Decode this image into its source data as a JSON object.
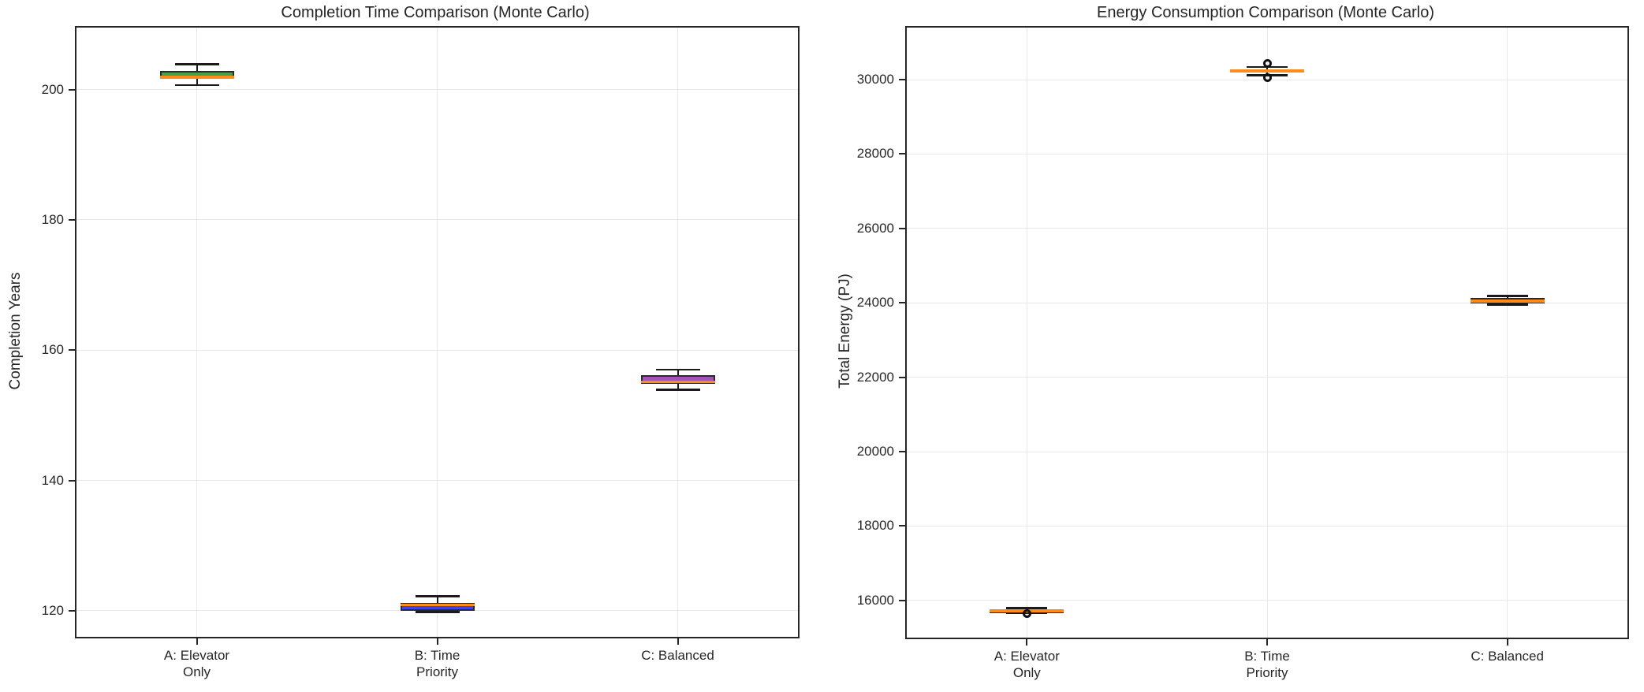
{
  "figure": {
    "background": "#ffffff"
  },
  "colors": {
    "median": "#ff8c1a",
    "box_edge": "#2a2a2a",
    "whisker": "#1a1a1a",
    "grid": "#e8e8e8",
    "text": "#262626",
    "green_box": "#45a049",
    "blue_box": "#4343ee",
    "purple_box": "#a352b5"
  },
  "chart_data": [
    {
      "type": "box",
      "title": "Completion Time Comparison (Monte Carlo)",
      "ylabel": "Completion Years",
      "xlabel": "",
      "grid": true,
      "categories": [
        [
          "A: Elevator",
          "Only"
        ],
        [
          "B: Time",
          "Priority"
        ],
        [
          "C: Balanced"
        ]
      ],
      "yticks": [
        120,
        140,
        160,
        180,
        200
      ],
      "ylim": [
        116,
        209.5
      ],
      "boxes": [
        {
          "label": "A: Elevator Only",
          "whisker_low": 200.7,
          "q1": 201.6,
          "median": 201.9,
          "q3": 202.9,
          "whisker_high": 203.9,
          "fliers": [],
          "color": "#45a049"
        },
        {
          "label": "B: Time Priority",
          "whisker_low": 119.8,
          "q1": 120.0,
          "median": 120.9,
          "q3": 121.2,
          "whisker_high": 122.2,
          "fliers": [],
          "color": "#4343ee"
        },
        {
          "label": "C: Balanced",
          "whisker_low": 153.9,
          "q1": 154.8,
          "median": 155.1,
          "q3": 156.1,
          "whisker_high": 157.0,
          "fliers": [],
          "color": "#a352b5"
        }
      ]
    },
    {
      "type": "box",
      "title": "Energy Consumption Comparison (Monte Carlo)",
      "ylabel": "Total Energy (PJ)",
      "xlabel": "",
      "grid": true,
      "categories": [
        [
          "A: Elevator",
          "Only"
        ],
        [
          "B: Time",
          "Priority"
        ],
        [
          "C: Balanced"
        ]
      ],
      "yticks": [
        16000,
        18000,
        20000,
        22000,
        24000,
        26000,
        28000,
        30000
      ],
      "ylim": [
        15000,
        31400
      ],
      "boxes": [
        {
          "label": "A: Elevator Only",
          "whisker_low": 15670,
          "q1": 15700,
          "median": 15725,
          "q3": 15750,
          "whisker_high": 15790,
          "fliers": [
            15650
          ],
          "color": "#45a049"
        },
        {
          "label": "B: Time Priority",
          "whisker_low": 30120,
          "q1": 30190,
          "median": 30230,
          "q3": 30270,
          "whisker_high": 30340,
          "fliers": [
            30060,
            30430
          ],
          "color": "#4343ee"
        },
        {
          "label": "C: Balanced",
          "whisker_low": 23950,
          "q1": 23990,
          "median": 24050,
          "q3": 24130,
          "whisker_high": 24180,
          "fliers": [],
          "color": "#a352b5"
        }
      ]
    }
  ]
}
